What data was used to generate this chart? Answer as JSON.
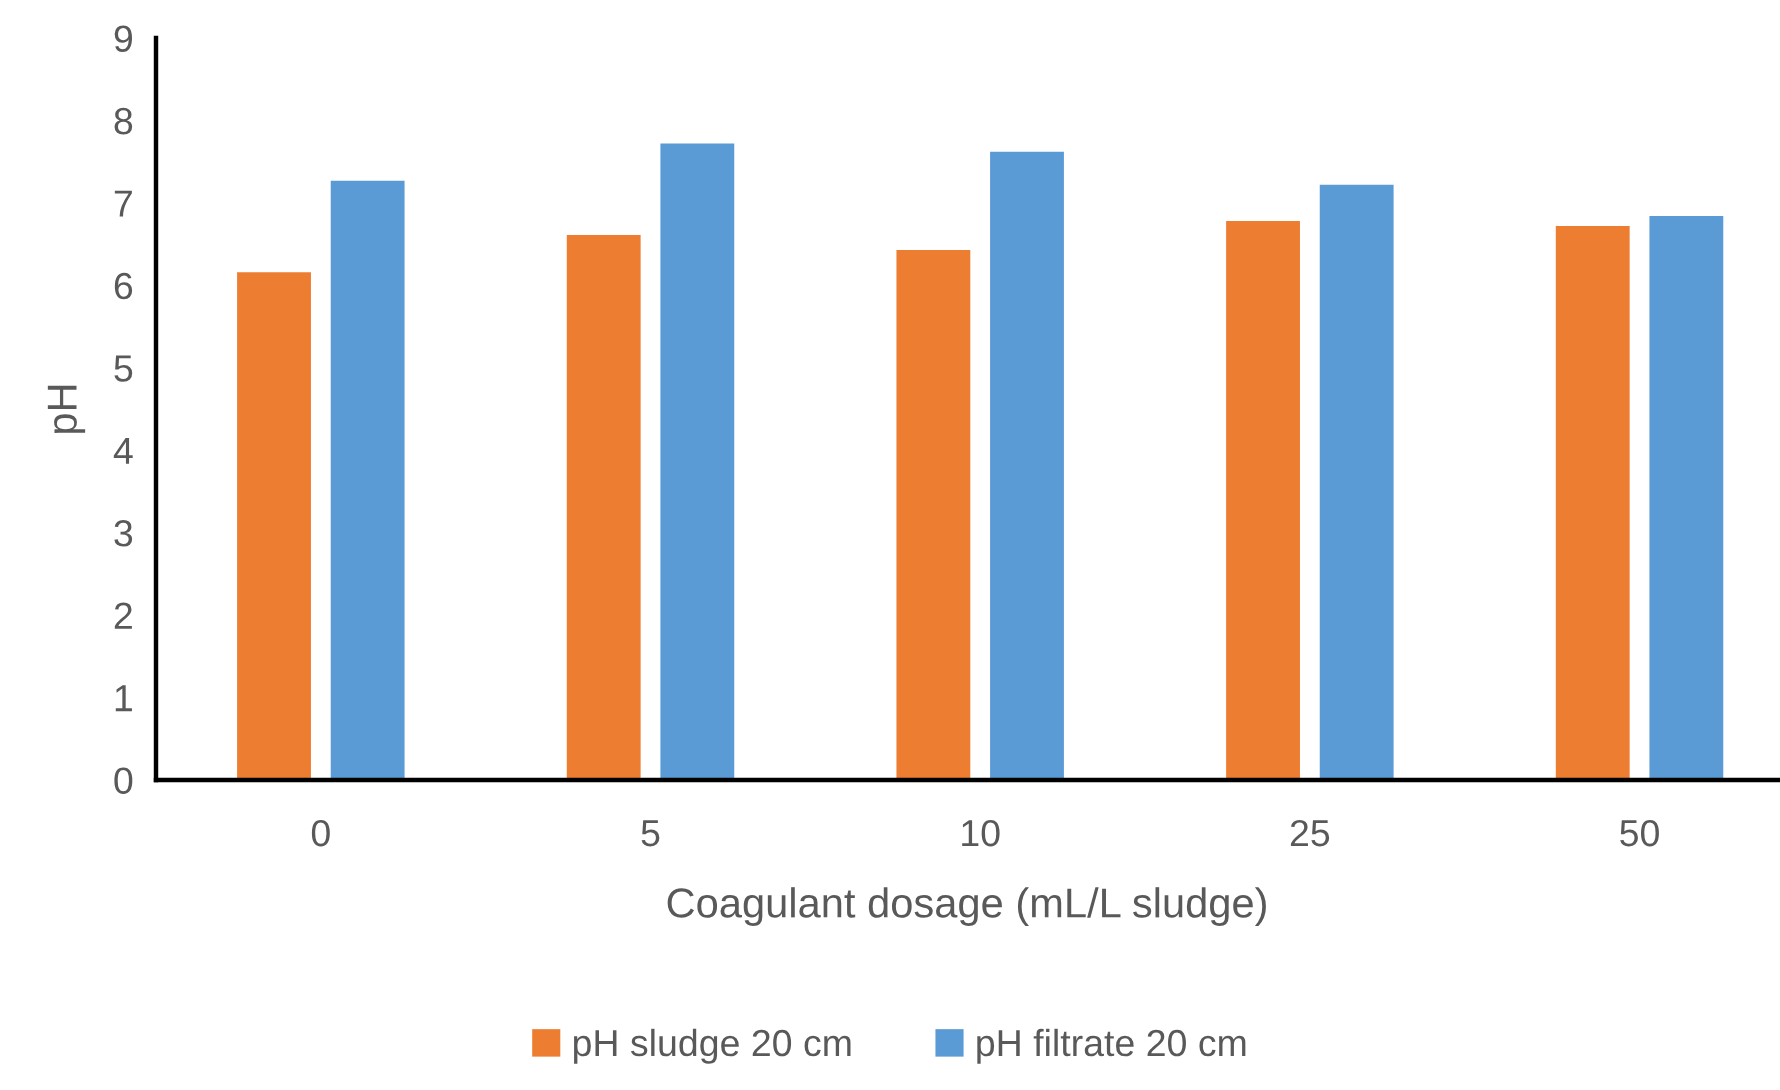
{
  "chart_data": {
    "type": "bar",
    "xlabel": "Coagulant dosage (mL/L sludge)",
    "ylabel": "pH",
    "categories": [
      "0",
      "5",
      "10",
      "25",
      "50"
    ],
    "series": [
      {
        "name": "pH sludge 20 cm",
        "color": "#ed7d31",
        "values": [
          6.16,
          6.61,
          6.43,
          6.78,
          6.72
        ]
      },
      {
        "name": "pH filtrate 20 cm",
        "color": "#5b9bd5",
        "values": [
          7.27,
          7.72,
          7.62,
          7.22,
          6.84
        ]
      }
    ],
    "ylim": [
      0,
      9
    ],
    "yticks": [
      0,
      1,
      2,
      3,
      4,
      5,
      6,
      7,
      8,
      9
    ],
    "grid": false,
    "legend": "bottom"
  }
}
